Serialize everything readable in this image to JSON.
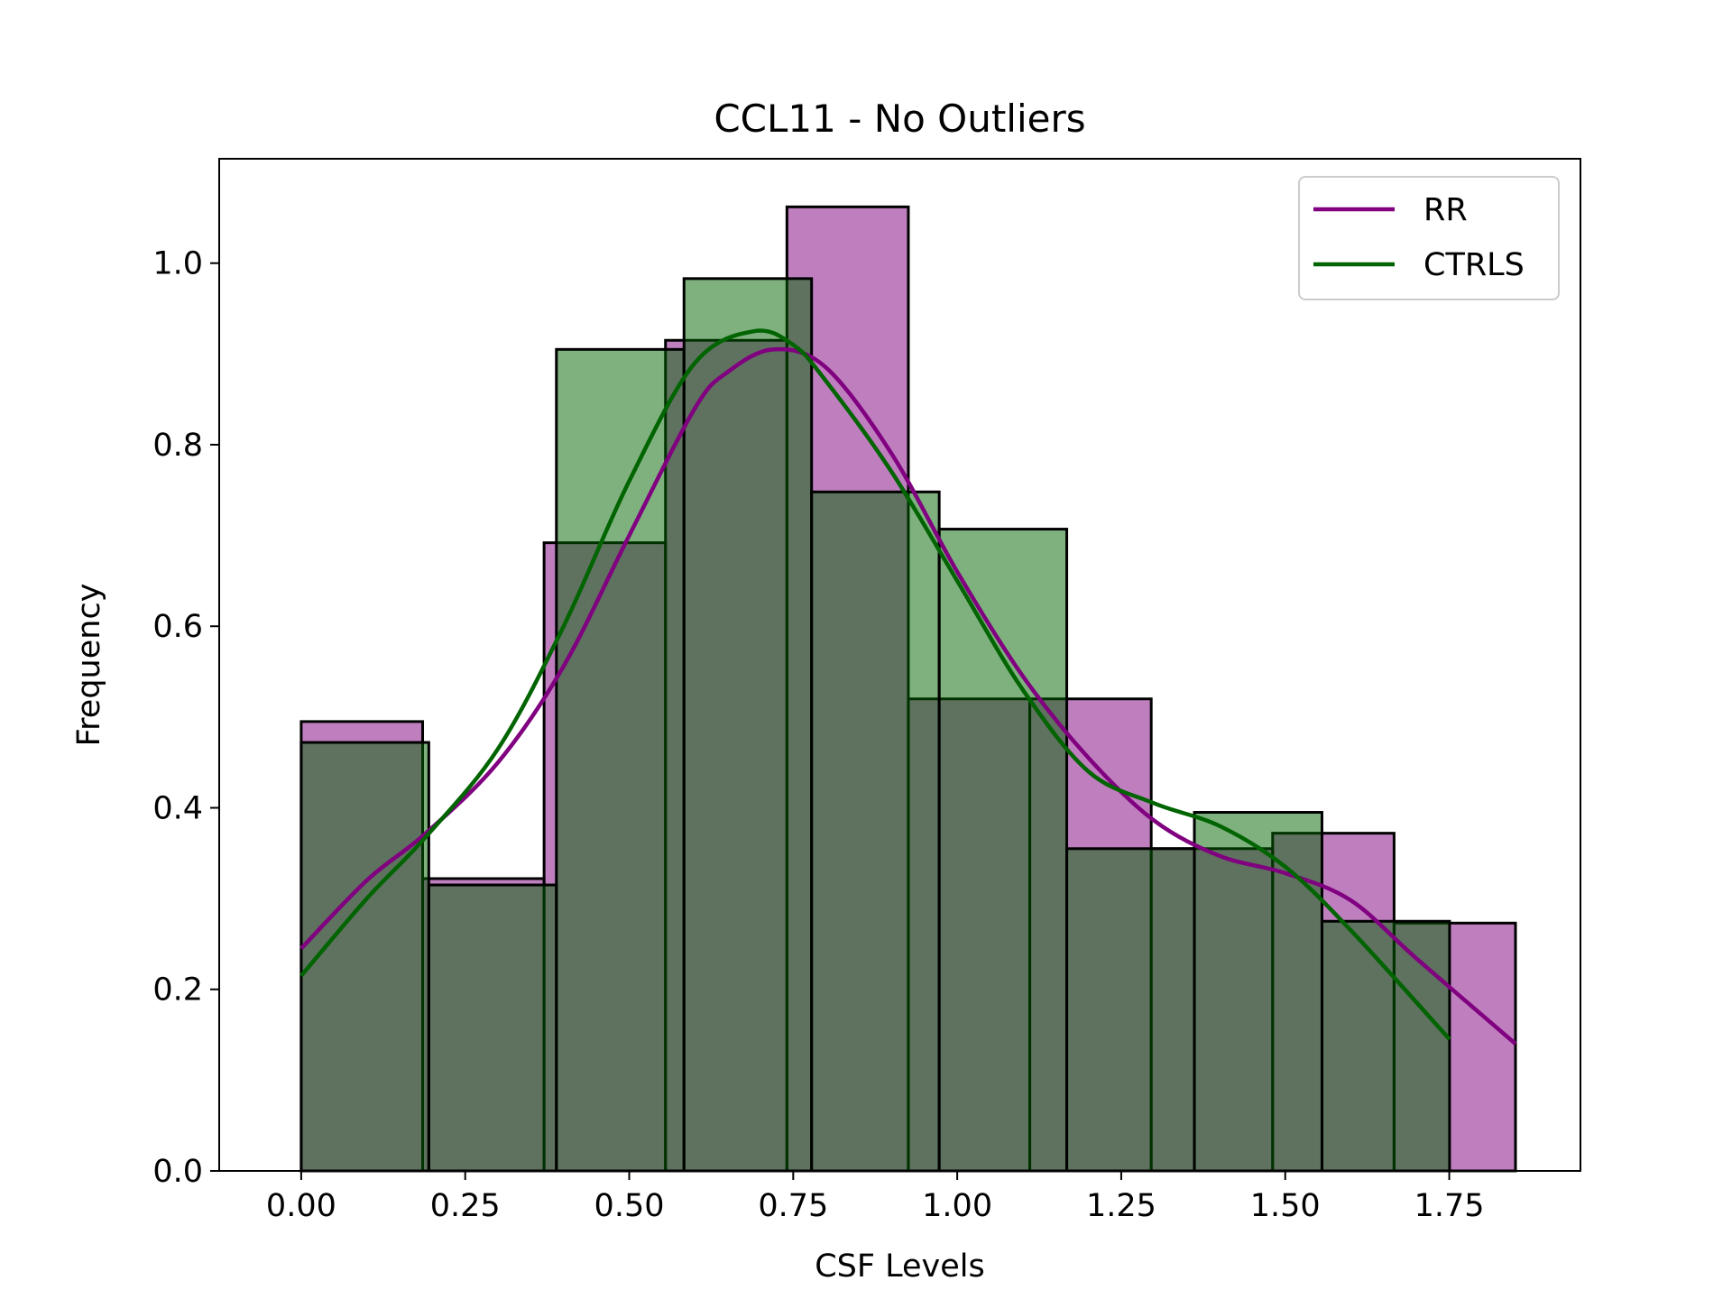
{
  "chart_data": {
    "type": "histogram-kde",
    "title": "CCL11 - No Outliers",
    "xlabel": "CSF Levels",
    "ylabel": "Frequency",
    "xlim": [
      -0.125,
      1.95
    ],
    "ylim": [
      0.0,
      1.115
    ],
    "xticks": [
      "0.00",
      "0.25",
      "0.50",
      "0.75",
      "1.00",
      "1.25",
      "1.50",
      "1.75"
    ],
    "yticks": [
      "0.0",
      "0.2",
      "0.4",
      "0.6",
      "0.8",
      "1.0"
    ],
    "grid": false,
    "legend_position": "top-right",
    "series": [
      {
        "name": "RR",
        "line_color": "#800080",
        "fill_color": "#bf7fbf",
        "bin_edges": [
          0.0,
          0.1851,
          0.3702,
          0.5553,
          0.7404,
          0.9255,
          1.1106,
          1.2957,
          1.4808,
          1.6659,
          1.851
        ],
        "values": [
          0.495,
          0.322,
          0.692,
          0.915,
          1.062,
          0.52,
          0.52,
          0.355,
          0.372,
          0.273
        ],
        "kde_x": [
          0.0,
          0.1,
          0.19,
          0.3,
          0.4,
          0.5,
          0.6,
          0.65,
          0.72,
          0.8,
          0.9,
          1.0,
          1.1,
          1.2,
          1.3,
          1.4,
          1.5,
          1.6,
          1.7,
          1.851
        ],
        "kde_y": [
          0.245,
          0.32,
          0.372,
          0.45,
          0.556,
          0.7,
          0.84,
          0.88,
          0.905,
          0.885,
          0.79,
          0.66,
          0.545,
          0.455,
          0.386,
          0.347,
          0.328,
          0.298,
          0.234,
          0.14
        ]
      },
      {
        "name": "CTRLS",
        "line_color": "#006400",
        "fill_color": "#80b380",
        "bin_edges": [
          0.0,
          0.1945,
          0.389,
          0.5835,
          0.778,
          0.9725,
          1.167,
          1.3615,
          1.556,
          1.7505
        ],
        "values": [
          0.472,
          0.315,
          0.905,
          0.983,
          0.748,
          0.707,
          0.355,
          0.395,
          0.275
        ],
        "kde_x": [
          0.0,
          0.1,
          0.19,
          0.3,
          0.4,
          0.5,
          0.6,
          0.69,
          0.75,
          0.8,
          0.9,
          1.0,
          1.1,
          1.2,
          1.3,
          1.4,
          1.5,
          1.6,
          1.7505
        ],
        "kde_y": [
          0.215,
          0.3,
          0.368,
          0.465,
          0.6,
          0.76,
          0.89,
          0.925,
          0.91,
          0.87,
          0.77,
          0.65,
          0.53,
          0.44,
          0.405,
          0.38,
          0.335,
          0.265,
          0.145
        ]
      }
    ],
    "overlap_color": "#5f745f"
  }
}
